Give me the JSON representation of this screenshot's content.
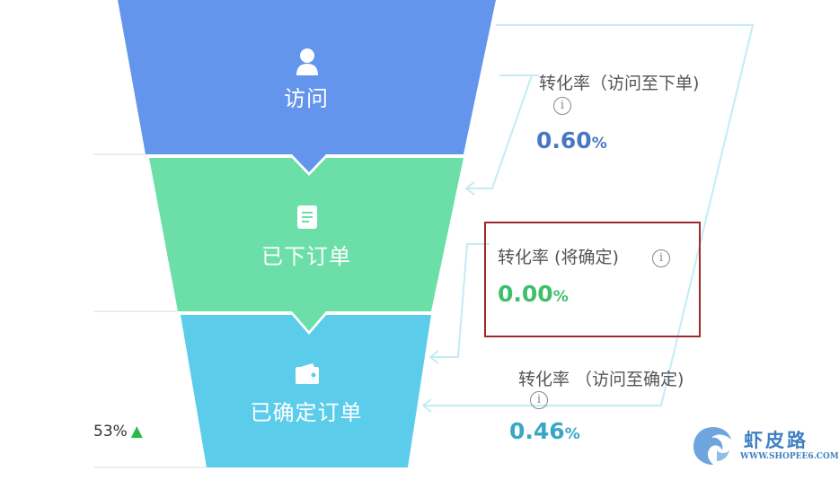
{
  "funnel": {
    "stages": [
      {
        "label": "访问",
        "icon": "user-icon",
        "color": "#6495ed"
      },
      {
        "label": "已下订单",
        "icon": "document-icon",
        "color": "#6cdfa8"
      },
      {
        "label": "已确定订单",
        "icon": "wallet-icon",
        "color": "#5bcdea"
      }
    ]
  },
  "metrics": [
    {
      "label": "转化率（访问至下单)",
      "value": "0.60",
      "unit": "%",
      "color": "#4a77c2"
    },
    {
      "label": "转化率 (将确定)",
      "value": "0.00",
      "unit": "%",
      "color": "#3fbf6a"
    },
    {
      "label": "转化率 （访问至确定)",
      "value": "0.46",
      "unit": "%",
      "color": "#3aa6c6"
    }
  ],
  "left_metric": {
    "value": "53%",
    "trend": "up",
    "trend_color": "#2db84d"
  },
  "watermark": {
    "text": "虾皮路",
    "url": "WWW.SHOPEE6.COM"
  }
}
